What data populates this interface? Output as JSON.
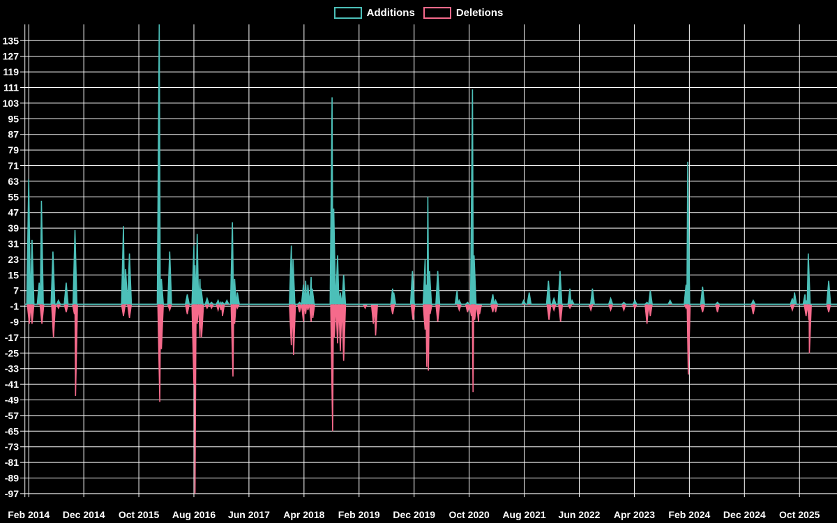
{
  "legend": {
    "items": [
      {
        "label": "Additions",
        "color": "#4cbfb8"
      },
      {
        "label": "Deletions",
        "color": "#f56a8b"
      }
    ]
  },
  "chart_data": {
    "type": "area",
    "title": "Weekly code additions and deletions",
    "background": "#000000",
    "grid": "on",
    "gridline_color": "#ffffff",
    "text_color": "#ffffff",
    "legend_position": "top-center",
    "baseline": 0,
    "x_axis": {
      "unit": "months since Feb 2014",
      "tick_step_months": 10,
      "labels": [
        "Feb 2014",
        "Dec 2014",
        "Oct 2015",
        "Aug 2016",
        "Jun 2017",
        "Apr 2018",
        "Feb 2019",
        "Dec 2019",
        "Oct 2020",
        "Aug 2021",
        "Jun 2022",
        "Apr 2023",
        "Feb 2024",
        "Dec 2024",
        "Oct 2025"
      ]
    },
    "y_axis": {
      "ticks": [
        135,
        127,
        119,
        111,
        103,
        95,
        87,
        79,
        71,
        63,
        55,
        47,
        39,
        31,
        23,
        15,
        7,
        -1,
        -9,
        -17,
        -25,
        -33,
        -41,
        -49,
        -57,
        -65,
        -73,
        -81,
        -89,
        -97
      ],
      "min": -97,
      "max": 143
    },
    "series": [
      {
        "name": "Additions",
        "color": "#4cbfb8",
        "points": [
          [
            0,
            64
          ],
          [
            0.6,
            33
          ],
          [
            1.9,
            11
          ],
          [
            2.3,
            53
          ],
          [
            4.4,
            27
          ],
          [
            5.4,
            2
          ],
          [
            6.8,
            11
          ],
          [
            8.4,
            38
          ],
          [
            17.2,
            40
          ],
          [
            17.6,
            18
          ],
          [
            18.3,
            26
          ],
          [
            23.7,
            144
          ],
          [
            24.1,
            13
          ],
          [
            25.6,
            27
          ],
          [
            28.8,
            5
          ],
          [
            30.0,
            30
          ],
          [
            30.2,
            20
          ],
          [
            30.6,
            36
          ],
          [
            31.1,
            13
          ],
          [
            31.3,
            8
          ],
          [
            32.4,
            3
          ],
          [
            33.2,
            1
          ],
          [
            34.4,
            2
          ],
          [
            34.9,
            1
          ],
          [
            35.2,
            1
          ],
          [
            36.0,
            2
          ],
          [
            37.0,
            42
          ],
          [
            37.4,
            13
          ],
          [
            37.9,
            6
          ],
          [
            47.7,
            30
          ],
          [
            48.0,
            23
          ],
          [
            49.2,
            1
          ],
          [
            49.9,
            10
          ],
          [
            50.3,
            12
          ],
          [
            50.7,
            10
          ],
          [
            51.3,
            14
          ],
          [
            51.5,
            8
          ],
          [
            55.1,
            106
          ],
          [
            55.4,
            49
          ],
          [
            56.1,
            25
          ],
          [
            56.6,
            6
          ],
          [
            57.2,
            15
          ],
          [
            66.1,
            8
          ],
          [
            66.3,
            6
          ],
          [
            69.7,
            17
          ],
          [
            72.0,
            23
          ],
          [
            72.2,
            10
          ],
          [
            72.5,
            55
          ],
          [
            72.8,
            17
          ],
          [
            74.3,
            17
          ],
          [
            77.8,
            7
          ],
          [
            78.2,
            2
          ],
          [
            79.7,
            1
          ],
          [
            80.6,
            110
          ],
          [
            80.9,
            25
          ],
          [
            84.3,
            5
          ],
          [
            84.8,
            2
          ],
          [
            89.9,
            2
          ],
          [
            90.9,
            6
          ],
          [
            94.4,
            12
          ],
          [
            95.4,
            3
          ],
          [
            96.5,
            17
          ],
          [
            98.3,
            8
          ],
          [
            98.7,
            2
          ],
          [
            102.4,
            8
          ],
          [
            105.7,
            3
          ],
          [
            108.1,
            1
          ],
          [
            110.1,
            2
          ],
          [
            112.3,
            1
          ],
          [
            112.9,
            7
          ],
          [
            116.5,
            2
          ],
          [
            119.4,
            10
          ],
          [
            119.7,
            73
          ],
          [
            122.4,
            9
          ],
          [
            125.1,
            1
          ],
          [
            131.6,
            2
          ],
          [
            138.7,
            3
          ],
          [
            139.1,
            6
          ],
          [
            141.0,
            5
          ],
          [
            141.2,
            2
          ],
          [
            141.6,
            26
          ],
          [
            145.3,
            12
          ]
        ]
      },
      {
        "name": "Deletions",
        "color": "#f56a8b",
        "points": [
          [
            0.1,
            -10
          ],
          [
            0.6,
            -10
          ],
          [
            2.4,
            -10
          ],
          [
            4.5,
            -17
          ],
          [
            5.4,
            -2
          ],
          [
            6.8,
            -4
          ],
          [
            8.3,
            -5
          ],
          [
            8.5,
            -47
          ],
          [
            17.2,
            -6
          ],
          [
            18.3,
            -7
          ],
          [
            23.8,
            -50
          ],
          [
            24.1,
            -23
          ],
          [
            25.6,
            -3
          ],
          [
            28.8,
            -5
          ],
          [
            30.0,
            -41
          ],
          [
            30.2,
            -97
          ],
          [
            30.6,
            -10
          ],
          [
            31.1,
            -17
          ],
          [
            31.4,
            -17
          ],
          [
            32.4,
            -2
          ],
          [
            33.2,
            -2
          ],
          [
            34.4,
            -3
          ],
          [
            34.9,
            -3
          ],
          [
            35.2,
            -6
          ],
          [
            37.1,
            -37
          ],
          [
            37.4,
            -10
          ],
          [
            37.9,
            -2
          ],
          [
            47.7,
            -21
          ],
          [
            48.1,
            -26
          ],
          [
            49.2,
            -4
          ],
          [
            49.9,
            -9
          ],
          [
            50.3,
            -5
          ],
          [
            50.7,
            -3
          ],
          [
            51.3,
            -9
          ],
          [
            51.6,
            -7
          ],
          [
            55.2,
            -65
          ],
          [
            55.5,
            -17
          ],
          [
            56.1,
            -20
          ],
          [
            56.6,
            -24
          ],
          [
            57.2,
            -29
          ],
          [
            61.1,
            -2
          ],
          [
            62.6,
            -10
          ],
          [
            63.0,
            -16
          ],
          [
            66.1,
            -5
          ],
          [
            69.8,
            -8
          ],
          [
            72.0,
            -13
          ],
          [
            72.3,
            -32
          ],
          [
            72.6,
            -34
          ],
          [
            72.9,
            -5
          ],
          [
            74.3,
            -9
          ],
          [
            78.2,
            -3
          ],
          [
            79.7,
            -4
          ],
          [
            80.4,
            -6
          ],
          [
            80.7,
            -45
          ],
          [
            81.0,
            -8
          ],
          [
            81.7,
            -9
          ],
          [
            81.9,
            -5
          ],
          [
            84.3,
            -4
          ],
          [
            84.8,
            -4
          ],
          [
            94.5,
            -8
          ],
          [
            95.4,
            -3
          ],
          [
            96.6,
            -9
          ],
          [
            98.3,
            -2
          ],
          [
            102.1,
            -3
          ],
          [
            105.7,
            -3
          ],
          [
            108.1,
            -3
          ],
          [
            110.1,
            -2
          ],
          [
            112.3,
            -10
          ],
          [
            112.9,
            -6
          ],
          [
            119.4,
            -2
          ],
          [
            119.8,
            -36
          ],
          [
            122.4,
            -4
          ],
          [
            125.1,
            -4
          ],
          [
            131.6,
            -5
          ],
          [
            138.7,
            -3
          ],
          [
            141.2,
            -6
          ],
          [
            141.7,
            -8
          ],
          [
            141.8,
            -25
          ],
          [
            145.3,
            -4
          ]
        ]
      }
    ]
  }
}
